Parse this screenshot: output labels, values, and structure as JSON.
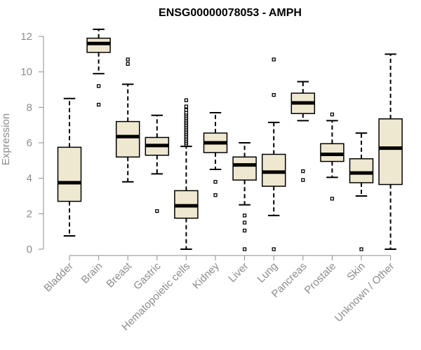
{
  "chart_data": {
    "type": "box",
    "title": "ENSG00000078053 - AMPH",
    "xlabel": "",
    "ylabel": "Expression",
    "ylim": [
      0,
      12.4
    ],
    "yticks": [
      0,
      2,
      4,
      6,
      8,
      10,
      12
    ],
    "box_fill": "#efe8d1",
    "categories": [
      "Bladder",
      "Brain",
      "Breast",
      "Gastric",
      "Hematopoietic cells",
      "Kidney",
      "Liver",
      "Lung",
      "Pancreas",
      "Prostate",
      "Skin",
      "Unknown / Other"
    ],
    "boxes": [
      {
        "category": "Bladder",
        "whisker_low": 0.75,
        "q1": 2.7,
        "median": 3.75,
        "q3": 5.75,
        "whisker_high": 8.5,
        "outliers": []
      },
      {
        "category": "Brain",
        "whisker_low": 9.9,
        "q1": 11.1,
        "median": 11.6,
        "q3": 11.9,
        "whisker_high": 12.4,
        "outliers": [
          9.2,
          8.15
        ]
      },
      {
        "category": "Breast",
        "whisker_low": 3.8,
        "q1": 5.2,
        "median": 6.35,
        "q3": 7.2,
        "whisker_high": 9.3,
        "outliers": [
          10.7,
          10.45
        ]
      },
      {
        "category": "Gastric",
        "whisker_low": 4.25,
        "q1": 5.3,
        "median": 5.85,
        "q3": 6.3,
        "whisker_high": 7.55,
        "outliers": [
          2.15
        ]
      },
      {
        "category": "Hematopoietic cells",
        "whisker_low": 0.0,
        "q1": 1.75,
        "median": 2.45,
        "q3": 3.3,
        "whisker_high": 5.8,
        "outliers": [
          5.9,
          6.0,
          6.1,
          6.2,
          6.3,
          6.4,
          6.5,
          6.6,
          6.7,
          6.8,
          6.9,
          7.0,
          7.1,
          7.2,
          7.3,
          7.4,
          7.5,
          7.6,
          7.7,
          7.85,
          8.05,
          8.4
        ]
      },
      {
        "category": "Kidney",
        "whisker_low": 4.5,
        "q1": 5.45,
        "median": 6.0,
        "q3": 6.55,
        "whisker_high": 7.7,
        "outliers": [
          3.8,
          3.05
        ]
      },
      {
        "category": "Liver",
        "whisker_low": 2.5,
        "q1": 3.9,
        "median": 4.75,
        "q3": 5.2,
        "whisker_high": 6.0,
        "outliers": [
          1.9,
          1.5,
          1.05,
          0.0
        ]
      },
      {
        "category": "Lung",
        "whisker_low": 1.9,
        "q1": 3.55,
        "median": 4.35,
        "q3": 5.35,
        "whisker_high": 7.15,
        "outliers": [
          10.7,
          8.7,
          0.0
        ]
      },
      {
        "category": "Pancreas",
        "whisker_low": 7.25,
        "q1": 7.65,
        "median": 8.25,
        "q3": 8.8,
        "whisker_high": 9.45,
        "outliers": [
          4.4,
          3.9
        ]
      },
      {
        "category": "Prostate",
        "whisker_low": 4.05,
        "q1": 4.95,
        "median": 5.35,
        "q3": 5.95,
        "whisker_high": 7.25,
        "outliers": [
          7.6,
          2.85
        ]
      },
      {
        "category": "Skin",
        "whisker_low": 3.0,
        "q1": 3.75,
        "median": 4.3,
        "q3": 5.1,
        "whisker_high": 6.55,
        "outliers": [
          0.0
        ]
      },
      {
        "category": "Unknown / Other",
        "whisker_low": 0.0,
        "q1": 3.65,
        "median": 5.7,
        "q3": 7.35,
        "whisker_high": 11.0,
        "outliers": []
      }
    ]
  }
}
